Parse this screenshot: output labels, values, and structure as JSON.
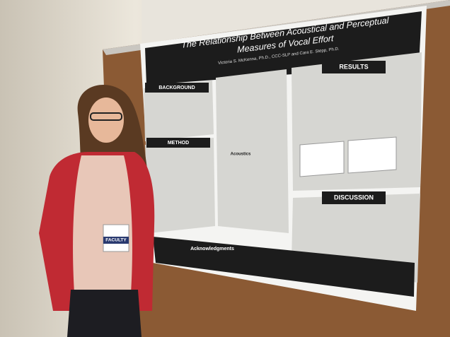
{
  "poster": {
    "title_lines": [
      "The Relationship Between Acoustical and Perceptual",
      "Measures of Vocal Effort"
    ],
    "authors": "Victoria S. McKenna, Ph.D., CCC-SLP and Cara E. Stepp, Ph.D.",
    "sections": [
      "BACKGROUND",
      "METHOD",
      "Acoustics",
      "RESULTS",
      "DISCUSSION",
      "Acknowledgments"
    ]
  },
  "badge": {
    "label": "FACULTY"
  }
}
